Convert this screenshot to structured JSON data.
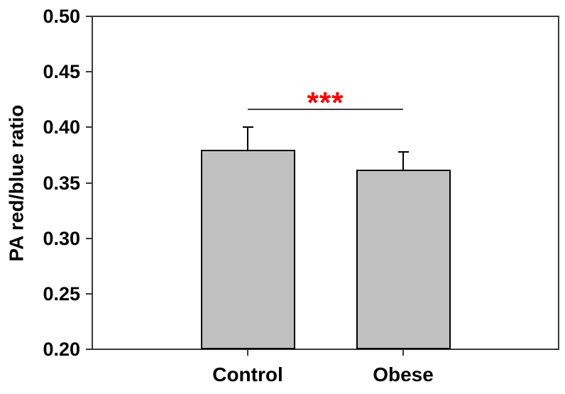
{
  "figure": {
    "background_color": "#ffffff",
    "frame_color": "#383838",
    "bar_fill_color": "#c0c0c0",
    "bar_border_color": "#000000",
    "error_bar_color": "#000000",
    "significance_line_color": "#404040",
    "significance_text_color": "#ff0000",
    "text_color": "#000000"
  },
  "chart_data": {
    "type": "bar",
    "title": "",
    "xlabel": "",
    "ylabel": "PA red/blue ratio",
    "categories": [
      "Control",
      "Obese"
    ],
    "values": [
      0.38,
      0.362
    ],
    "errors": [
      0.02,
      0.016
    ],
    "error_direction": "up",
    "ylim": [
      0.2,
      0.5
    ],
    "ytick_values": [
      0.2,
      0.25,
      0.3,
      0.35,
      0.4,
      0.45,
      0.5
    ],
    "ytick_labels": [
      "0.20",
      "0.25",
      "0.30",
      "0.35",
      "0.40",
      "0.45",
      "0.50"
    ],
    "grid": false,
    "legend": null,
    "annotation": {
      "text": "***",
      "from_category": "Control",
      "to_category": "Obese",
      "line_value": 0.416,
      "text_center_value": 0.427
    }
  }
}
